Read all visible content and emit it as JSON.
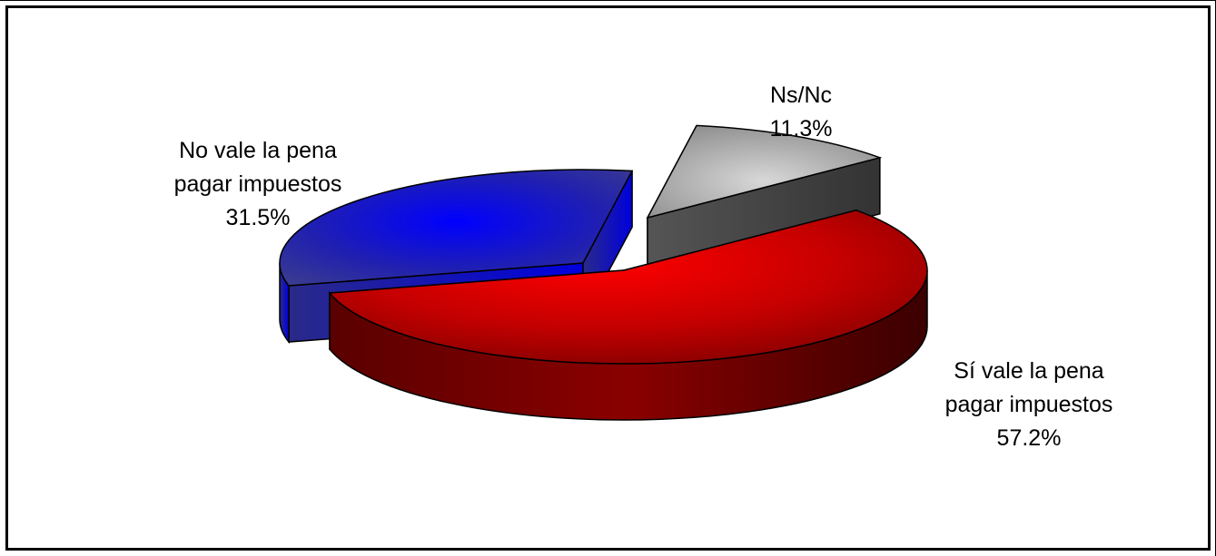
{
  "chart_data": {
    "type": "pie",
    "title": "",
    "three_d": true,
    "slices": [
      {
        "label_lines": [
          "Sí vale la pena",
          "pagar impuestos"
        ],
        "value": 57.2,
        "value_label": "57.2%",
        "color": "#cc0000",
        "exploded": false
      },
      {
        "label_lines": [
          "No vale la pena",
          "pagar impuestos"
        ],
        "value": 31.5,
        "value_label": "31.5%",
        "color": "#1a1ab8",
        "exploded": true
      },
      {
        "label_lines": [
          "Ns/Nc"
        ],
        "value": 11.3,
        "value_label": "11.3%",
        "color": "#a6a6a6",
        "exploded": true
      }
    ],
    "legend": "none",
    "grid": false
  }
}
